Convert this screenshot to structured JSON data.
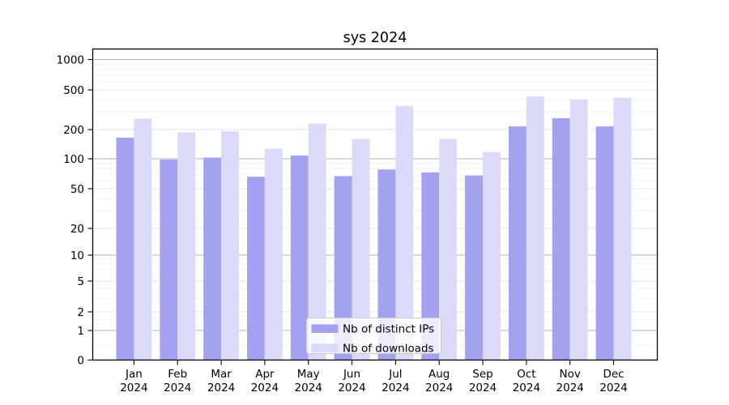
{
  "title": "sys 2024",
  "chart_data": {
    "type": "bar",
    "title": "sys 2024",
    "categories": [
      "Jan",
      "Feb",
      "Mar",
      "Apr",
      "May",
      "Jun",
      "Jul",
      "Aug",
      "Sep",
      "Oct",
      "Nov",
      "Dec"
    ],
    "x_year": "2024",
    "series": [
      {
        "name": "Nb of distinct IPs",
        "color": "#a2a2f0",
        "values": [
          165,
          98,
          103,
          66,
          108,
          67,
          78,
          73,
          68,
          215,
          260,
          215
        ]
      },
      {
        "name": "Nb of downloads",
        "color": "#dbdbf9",
        "values": [
          258,
          187,
          192,
          127,
          230,
          160,
          345,
          160,
          118,
          430,
          400,
          418
        ]
      }
    ],
    "yscale": "symlog",
    "yticks": [
      0,
      1,
      2,
      5,
      10,
      20,
      50,
      100,
      200,
      500,
      1000
    ],
    "ylim": [
      0,
      1260
    ],
    "xlabel": "",
    "ylabel": "",
    "grid": true,
    "legend_position": "lower center",
    "background_color": "#ffffff"
  }
}
